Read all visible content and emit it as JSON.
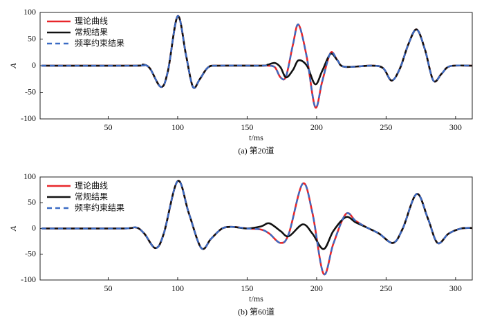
{
  "chart_data": [
    {
      "type": "line",
      "caption": "(a) 第20道",
      "xlabel": "t/ms",
      "ylabel": "A",
      "legend": "upper left",
      "xlim": [
        1,
        312
      ],
      "ylim": [
        -100,
        100
      ],
      "xticks": [
        50,
        100,
        150,
        200,
        250,
        300
      ],
      "yticks": [
        -100,
        -50,
        0,
        50,
        100
      ],
      "x": [
        2,
        70,
        75,
        80,
        88,
        93,
        100,
        106,
        111,
        116,
        122,
        130,
        160,
        165,
        170,
        174,
        178,
        183,
        187,
        193,
        199,
        204,
        210,
        215,
        220,
        240,
        248,
        254,
        260,
        266,
        272,
        278,
        284,
        290,
        296,
        312
      ],
      "series": [
        {
          "name": "理论曲线",
          "color": "#e8262a",
          "dash": false,
          "values": [
            0,
            0,
            2,
            -5,
            -40,
            -10,
            93,
            20,
            -40,
            -25,
            -3,
            0,
            0,
            0,
            -3,
            -22,
            -20,
            40,
            77,
            15,
            -78,
            -30,
            24,
            10,
            -2,
            0,
            -5,
            -28,
            -5,
            40,
            68,
            30,
            -28,
            -15,
            -1,
            0
          ]
        },
        {
          "name": "常规结果",
          "color": "#111111",
          "dash": false,
          "values": [
            0,
            0,
            2,
            -5,
            -40,
            -10,
            93,
            20,
            -40,
            -25,
            -3,
            0,
            0,
            2,
            5,
            -3,
            -22,
            -8,
            10,
            0,
            -35,
            -10,
            22,
            10,
            -2,
            0,
            -5,
            -28,
            -5,
            40,
            68,
            30,
            -28,
            -15,
            -1,
            0
          ]
        },
        {
          "name": "频率约束结果",
          "color": "#3a6bc4",
          "dash": true,
          "values": [
            0,
            0,
            2,
            -5,
            -40,
            -10,
            93,
            20,
            -40,
            -25,
            -3,
            0,
            0,
            0,
            -3,
            -22,
            -20,
            40,
            77,
            15,
            -78,
            -30,
            24,
            10,
            -2,
            0,
            -5,
            -28,
            -5,
            40,
            68,
            30,
            -28,
            -15,
            -1,
            0
          ]
        }
      ]
    },
    {
      "type": "line",
      "caption": "(b) 第60道",
      "xlabel": "t/ms",
      "ylabel": "A",
      "legend": "upper left",
      "xlim": [
        1,
        312
      ],
      "ylim": [
        -100,
        100
      ],
      "xticks": [
        50,
        100,
        150,
        200,
        250,
        300
      ],
      "yticks": [
        -100,
        -50,
        0,
        50,
        100
      ],
      "x": [
        2,
        60,
        70,
        76,
        84,
        90,
        100,
        108,
        117,
        124,
        132,
        140,
        150,
        160,
        166,
        174,
        180,
        190,
        197,
        205,
        212,
        221,
        228,
        236,
        245,
        255,
        262,
        272,
        280,
        287,
        295,
        304,
        312
      ],
      "series": [
        {
          "name": "理论曲线",
          "color": "#e8262a",
          "dash": false,
          "values": [
            0,
            0,
            2,
            -10,
            -38,
            -10,
            92,
            30,
            -38,
            -20,
            0,
            3,
            0,
            -2,
            -10,
            -28,
            -10,
            87,
            30,
            -88,
            -30,
            28,
            15,
            2,
            -10,
            -28,
            0,
            67,
            20,
            -28,
            -10,
            0,
            1
          ]
        },
        {
          "name": "常规结果",
          "color": "#111111",
          "dash": false,
          "values": [
            0,
            0,
            2,
            -10,
            -38,
            -10,
            92,
            30,
            -38,
            -20,
            0,
            3,
            0,
            4,
            10,
            -5,
            -15,
            8,
            -10,
            -40,
            -5,
            22,
            12,
            2,
            -10,
            -28,
            0,
            67,
            20,
            -28,
            -10,
            0,
            1
          ]
        },
        {
          "name": "频率约束结果",
          "color": "#3a6bc4",
          "dash": true,
          "values": [
            0,
            0,
            2,
            -10,
            -38,
            -10,
            92,
            30,
            -38,
            -20,
            0,
            3,
            0,
            -2,
            -10,
            -28,
            -10,
            87,
            30,
            -88,
            -30,
            28,
            15,
            2,
            -10,
            -28,
            0,
            67,
            20,
            -28,
            -10,
            0,
            1
          ]
        }
      ]
    }
  ]
}
